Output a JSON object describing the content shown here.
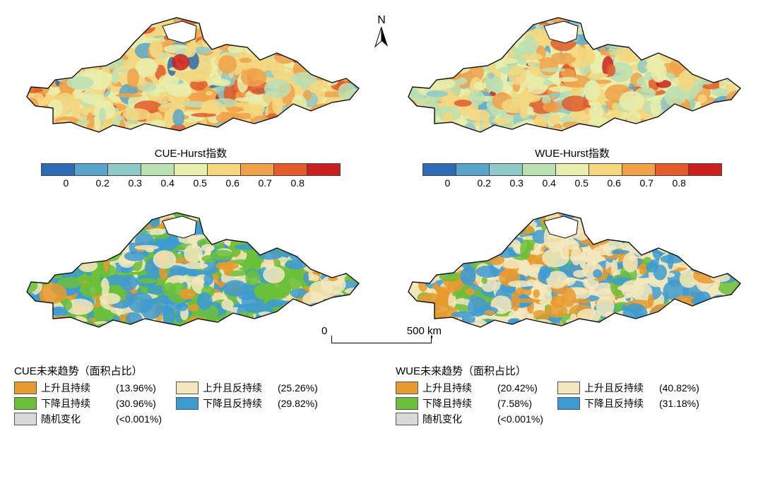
{
  "north_label": "N",
  "scalebar": {
    "zero": "0",
    "dist": "500 km"
  },
  "hurst_colors": [
    "#2b6bb0",
    "#5aa4c9",
    "#8fc9c7",
    "#bcdfb1",
    "#e8efac",
    "#f5d77f",
    "#f0a24a",
    "#e25b2a",
    "#c9201f"
  ],
  "hurst_ticks": [
    "0",
    "0.2",
    "0.3",
    "0.4",
    "0.5",
    "0.6",
    "0.7",
    "0.8"
  ],
  "panel_top_left": {
    "title": "CUE-Hurst指数",
    "mean_tone": "#e3cd82"
  },
  "panel_top_right": {
    "title": "WUE-Hurst指数",
    "mean_tone": "#d9d592"
  },
  "trend_colors": {
    "rise_persist": "#e79a2d",
    "fall_persist": "#6bbf3a",
    "random": "#d9d9d9",
    "rise_antipersist": "#f3e7bd",
    "fall_antipersist": "#3d9bd1"
  },
  "panel_bot_left": {
    "legend_title": "CUE未来趋势（面积占比）",
    "items_left": [
      {
        "key": "rise_persist",
        "label": "上升且持续",
        "pct": "(13.96%)"
      },
      {
        "key": "fall_persist",
        "label": "下降且持续",
        "pct": "(30.96%)"
      },
      {
        "key": "random",
        "label": "随机变化",
        "pct": "(<0.001%)"
      }
    ],
    "items_right": [
      {
        "key": "rise_antipersist",
        "label": "上升且反持续",
        "pct": "(25.26%)"
      },
      {
        "key": "fall_antipersist",
        "label": "下降且反持续",
        "pct": "(29.82%)"
      }
    ]
  },
  "panel_bot_right": {
    "legend_title": "WUE未来趋势（面积占比）",
    "items_left": [
      {
        "key": "rise_persist",
        "label": "上升且持续",
        "pct": "(20.42%)"
      },
      {
        "key": "fall_persist",
        "label": "下降且持续",
        "pct": "(7.58%)"
      },
      {
        "key": "random",
        "label": "随机变化",
        "pct": "(<0.001%)"
      }
    ],
    "items_right": [
      {
        "key": "rise_antipersist",
        "label": "上升且反持续",
        "pct": "(40.82%)"
      },
      {
        "key": "fall_antipersist",
        "label": "下降且反持续",
        "pct": "(31.18%)"
      }
    ]
  }
}
